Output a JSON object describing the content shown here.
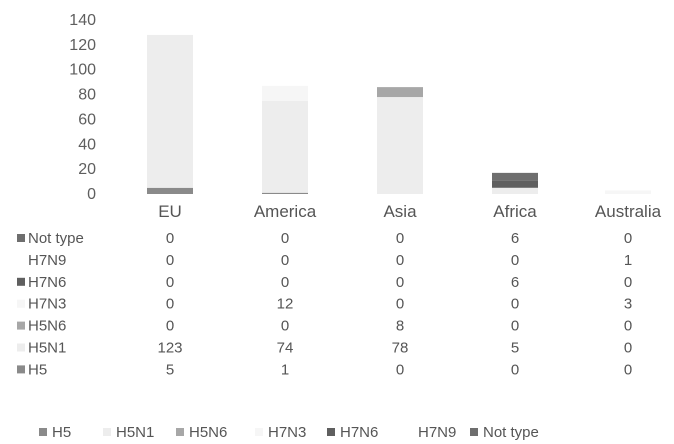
{
  "chart_data": {
    "type": "bar",
    "stacked": true,
    "categories": [
      "EU",
      "America",
      "Asia",
      "Africa",
      "Australia"
    ],
    "series": [
      {
        "name": "H5",
        "values": [
          5,
          1,
          0,
          0,
          0
        ],
        "color": "#8a8a8a"
      },
      {
        "name": "H5N1",
        "values": [
          123,
          74,
          78,
          5,
          0
        ],
        "color": "#ededed"
      },
      {
        "name": "H5N6",
        "values": [
          0,
          0,
          8,
          0,
          0
        ],
        "color": "#a7a7a7"
      },
      {
        "name": "H7N3",
        "values": [
          0,
          12,
          0,
          0,
          3
        ],
        "color": "#f6f6f6"
      },
      {
        "name": "H7N6",
        "values": [
          0,
          0,
          0,
          6,
          0
        ],
        "color": "#5f5f5f"
      },
      {
        "name": "H7N9",
        "values": [
          0,
          0,
          0,
          0,
          1
        ],
        "color": "#ffffff"
      },
      {
        "name": "Not type",
        "values": [
          0,
          0,
          0,
          6,
          0
        ],
        "color": "#6e6e6e"
      }
    ],
    "table_row_order": [
      "Not type",
      "H7N9",
      "H7N6",
      "H7N3",
      "H5N6",
      "H5N1",
      "H5"
    ],
    "yticks": [
      0,
      20,
      40,
      60,
      80,
      100,
      120,
      140
    ],
    "ylim": [
      0,
      140
    ],
    "grid": false,
    "legend_position": "bottom",
    "data_table": true,
    "title": "",
    "xlabel": "",
    "ylabel": ""
  }
}
